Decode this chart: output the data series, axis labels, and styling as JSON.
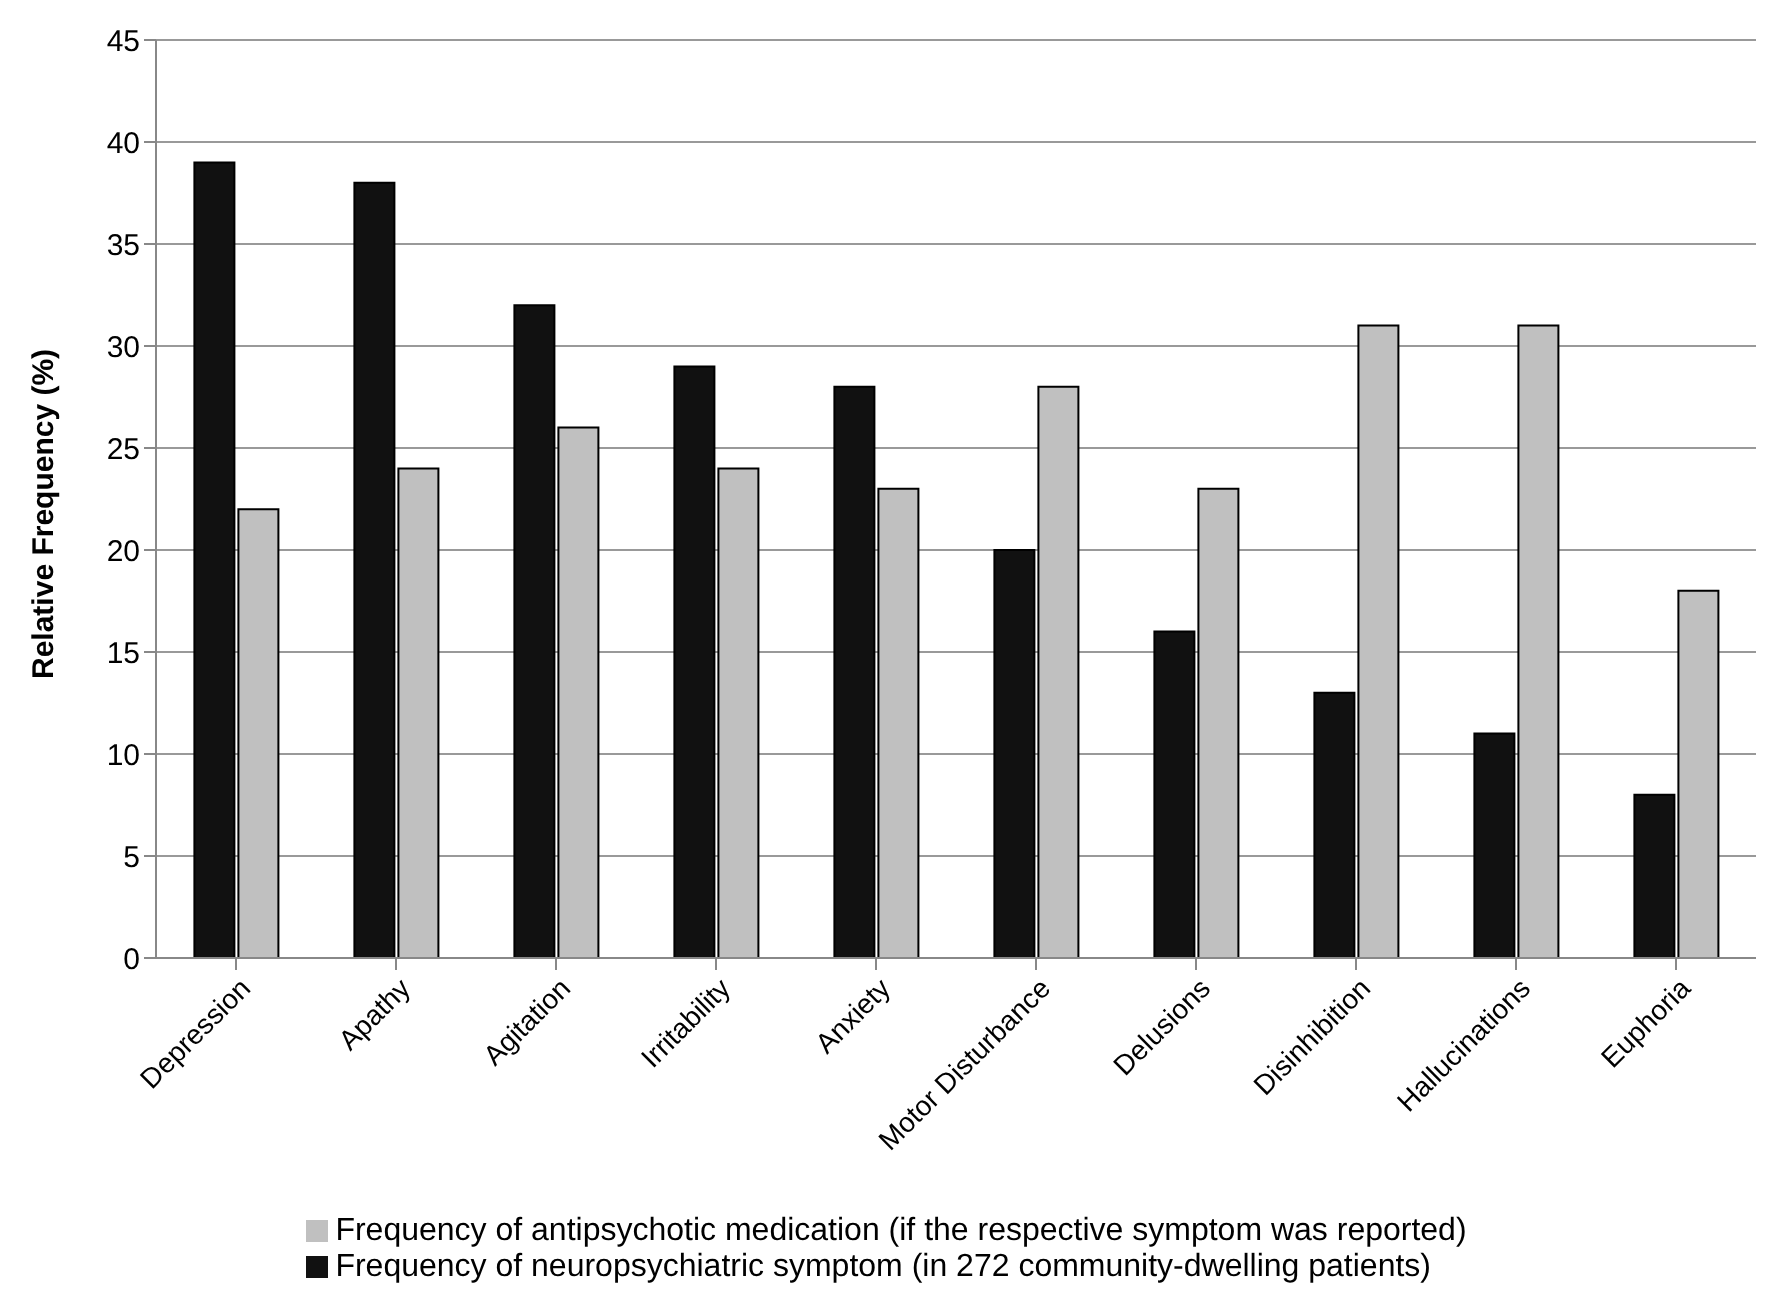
{
  "chart_data": {
    "type": "bar",
    "ylabel": "Relative Frequency (%)",
    "categories": [
      "Depression",
      "Apathy",
      "Agitation",
      "Irritability",
      "Anxiety",
      "Motor Disturbance",
      "Delusions",
      "Disinhibition",
      "Hallucinations",
      "Euphoria"
    ],
    "series": [
      {
        "name": "Frequency of neuropsychiatric symptom (in 272 community-dwelling patients)",
        "color": "#111111",
        "values": [
          39,
          38,
          32,
          29,
          28,
          20,
          16,
          13,
          11,
          8
        ]
      },
      {
        "name": "Frequency of antipsychotic medication (if the respective symptom was reported)",
        "color": "#c0c0c0",
        "values": [
          22,
          24,
          26,
          24,
          23,
          28,
          23,
          31,
          31,
          18
        ]
      }
    ],
    "ylim": [
      0,
      45
    ],
    "yticks": [
      0,
      5,
      10,
      15,
      20,
      25,
      30,
      35,
      40,
      45
    ],
    "grid": "y",
    "legend": "bottom"
  }
}
